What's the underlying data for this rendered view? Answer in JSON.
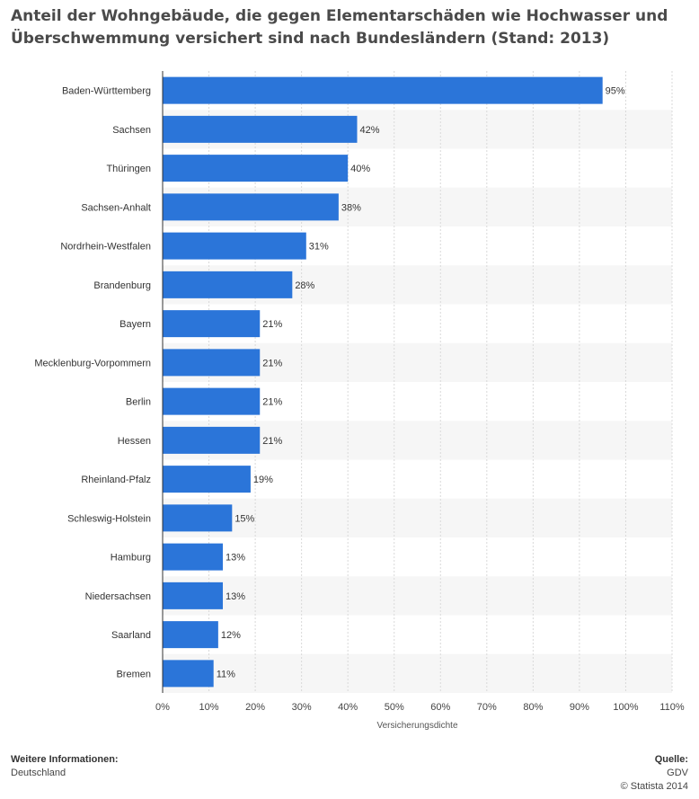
{
  "title": "Anteil der Wohngebäude, die gegen Elementarschäden wie Hochwasser und Überschwemmung versichert sind nach Bundesländern (Stand: 2013)",
  "footer": {
    "info_heading": "Weitere Informationen:",
    "info_text": "Deutschland",
    "source_heading": "Quelle:",
    "source_text": "GDV",
    "copyright": "© Statista 2014"
  },
  "colors": {
    "bar": "#2b75d9",
    "stripe": "#f6f6f6",
    "grid": "#d9d9d9",
    "axis": "#333333"
  },
  "chart_data": {
    "type": "bar",
    "orientation": "horizontal",
    "title": "Anteil der Wohngebäude, die gegen Elementarschäden wie Hochwasser und Überschwemmung versichert sind nach Bundesländern (Stand: 2013)",
    "xlabel": "Versicherungsdichte",
    "ylabel": "",
    "xlim": [
      0,
      110
    ],
    "ticks": [
      "0%",
      "10%",
      "20%",
      "30%",
      "40%",
      "50%",
      "60%",
      "70%",
      "80%",
      "90%",
      "100%",
      "110%"
    ],
    "tick_values": [
      0,
      10,
      20,
      30,
      40,
      50,
      60,
      70,
      80,
      90,
      100,
      110
    ],
    "unit": "%",
    "grid": true,
    "categories": [
      "Baden-Württemberg",
      "Sachsen",
      "Thüringen",
      "Sachsen-Anhalt",
      "Nordrhein-Westfalen",
      "Brandenburg",
      "Bayern",
      "Mecklenburg-Vorpommern",
      "Berlin",
      "Hessen",
      "Rheinland-Pfalz",
      "Schleswig-Holstein",
      "Hamburg",
      "Niedersachsen",
      "Saarland",
      "Bremen"
    ],
    "values": [
      95,
      42,
      40,
      38,
      31,
      28,
      21,
      21,
      21,
      21,
      19,
      15,
      13,
      13,
      12,
      11
    ],
    "value_labels": [
      "95%",
      "42%",
      "40%",
      "38%",
      "31%",
      "28%",
      "21%",
      "21%",
      "21%",
      "21%",
      "19%",
      "15%",
      "13%",
      "13%",
      "12%",
      "11%"
    ]
  }
}
